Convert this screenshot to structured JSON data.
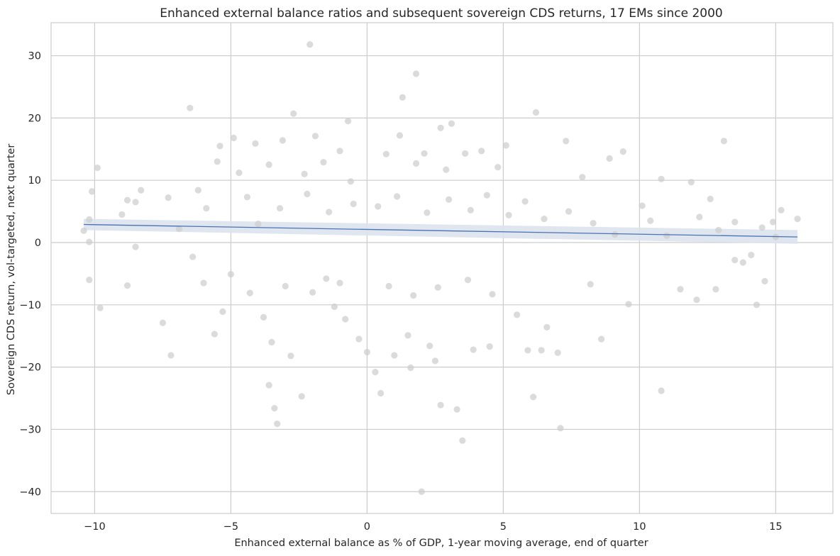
{
  "chart_data": {
    "type": "scatter",
    "title": "Enhanced external balance ratios and subsequent sovereign CDS returns, 17 EMs since 2000",
    "xlabel": "Enhanced external balance as % of GDP, 1-year moving average, end of quarter",
    "ylabel": "Sovereign CDS return, vol-targeted, next quarter",
    "xlim": [
      -11.6,
      17.1
    ],
    "ylim": [
      -43.5,
      35.3
    ],
    "xticks": [
      -10,
      -5,
      0,
      5,
      10,
      15
    ],
    "yticks": [
      -40,
      -30,
      -20,
      -10,
      0,
      10,
      20,
      30
    ],
    "xtick_labels": [
      "−10",
      "−5",
      "0",
      "5",
      "10",
      "15"
    ],
    "ytick_labels": [
      "−40",
      "−30",
      "−20",
      "−10",
      "0",
      "10",
      "20",
      "30"
    ],
    "grid": true,
    "colors": {
      "points": "#cccccc",
      "regression": "#4c72b0",
      "band": "#dbe3ee",
      "grid": "#cccccc",
      "axes_frame": "#cccccc"
    },
    "regression": {
      "x": [
        -10.4,
        15.8
      ],
      "y": [
        2.9,
        0.9
      ],
      "ci_halfwidth": [
        0.9,
        1.1
      ]
    },
    "points": [
      [
        -2.1,
        31.8
      ],
      [
        1.8,
        27.1
      ],
      [
        -6.5,
        21.6
      ],
      [
        6.2,
        20.9
      ],
      [
        -2.7,
        20.7
      ],
      [
        1.3,
        23.3
      ],
      [
        -0.7,
        19.5
      ],
      [
        2.7,
        18.4
      ],
      [
        -9.9,
        12.0
      ],
      [
        -10.1,
        8.2
      ],
      [
        -9.8,
        -10.5
      ],
      [
        -10.2,
        -6.0
      ],
      [
        -10.4,
        1.9
      ],
      [
        -10.2,
        3.7
      ],
      [
        -10.2,
        0.1
      ],
      [
        -9.0,
        4.5
      ],
      [
        -8.8,
        6.8
      ],
      [
        -8.5,
        6.5
      ],
      [
        -8.3,
        8.4
      ],
      [
        -8.5,
        -0.7
      ],
      [
        -8.8,
        -6.9
      ],
      [
        -7.5,
        -12.9
      ],
      [
        -7.2,
        -18.1
      ],
      [
        -7.3,
        7.2
      ],
      [
        -6.9,
        2.2
      ],
      [
        -6.4,
        -2.3
      ],
      [
        -6.2,
        8.4
      ],
      [
        -6.0,
        -6.5
      ],
      [
        -5.9,
        5.5
      ],
      [
        -5.5,
        13.0
      ],
      [
        -5.4,
        15.5
      ],
      [
        -5.6,
        -14.7
      ],
      [
        -5.3,
        -11.1
      ],
      [
        -5.0,
        -5.1
      ],
      [
        -4.9,
        16.8
      ],
      [
        -4.7,
        11.2
      ],
      [
        -4.4,
        7.3
      ],
      [
        -4.3,
        -8.1
      ],
      [
        -4.1,
        15.9
      ],
      [
        -3.8,
        -12.0
      ],
      [
        -3.6,
        12.5
      ],
      [
        -3.5,
        -16.0
      ],
      [
        -3.6,
        -22.9
      ],
      [
        -3.4,
        -26.6
      ],
      [
        -3.3,
        -29.1
      ],
      [
        -3.1,
        16.4
      ],
      [
        -2.8,
        -18.2
      ],
      [
        -2.4,
        -24.7
      ],
      [
        -2.3,
        11.0
      ],
      [
        -1.9,
        17.1
      ],
      [
        -1.6,
        12.9
      ],
      [
        -1.5,
        -5.8
      ],
      [
        -1.2,
        -10.3
      ],
      [
        -1.0,
        14.7
      ],
      [
        -0.8,
        -12.3
      ],
      [
        -0.6,
        9.8
      ],
      [
        -0.3,
        -15.5
      ],
      [
        0.0,
        -17.6
      ],
      [
        0.3,
        -20.8
      ],
      [
        0.5,
        -24.2
      ],
      [
        0.7,
        14.2
      ],
      [
        1.0,
        -18.1
      ],
      [
        1.2,
        17.2
      ],
      [
        1.5,
        -14.9
      ],
      [
        1.6,
        -20.1
      ],
      [
        1.8,
        12.7
      ],
      [
        2.0,
        -40.0
      ],
      [
        2.1,
        14.3
      ],
      [
        2.3,
        -16.6
      ],
      [
        2.5,
        -19.0
      ],
      [
        2.7,
        -26.1
      ],
      [
        2.9,
        11.7
      ],
      [
        3.1,
        19.1
      ],
      [
        3.3,
        -26.8
      ],
      [
        3.5,
        -31.8
      ],
      [
        3.6,
        14.3
      ],
      [
        3.9,
        -17.2
      ],
      [
        4.2,
        14.7
      ],
      [
        4.5,
        -16.7
      ],
      [
        4.8,
        12.1
      ],
      [
        5.1,
        15.6
      ],
      [
        5.5,
        -11.6
      ],
      [
        5.9,
        -17.3
      ],
      [
        6.1,
        -24.8
      ],
      [
        6.4,
        -17.3
      ],
      [
        6.6,
        -13.6
      ],
      [
        7.0,
        -17.7
      ],
      [
        7.1,
        -29.8
      ],
      [
        7.3,
        16.3
      ],
      [
        7.9,
        10.5
      ],
      [
        8.2,
        -6.7
      ],
      [
        8.6,
        -15.5
      ],
      [
        8.9,
        13.5
      ],
      [
        9.4,
        14.6
      ],
      [
        9.6,
        -9.9
      ],
      [
        10.1,
        5.9
      ],
      [
        10.8,
        10.2
      ],
      [
        10.8,
        -23.8
      ],
      [
        11.5,
        -7.5
      ],
      [
        12.1,
        -9.2
      ],
      [
        12.2,
        4.1
      ],
      [
        12.6,
        7.0
      ],
      [
        12.8,
        -7.5
      ],
      [
        13.1,
        16.3
      ],
      [
        13.5,
        -2.8
      ],
      [
        13.8,
        -3.2
      ],
      [
        14.1,
        -2.0
      ],
      [
        14.3,
        -10.0
      ],
      [
        14.6,
        -6.2
      ],
      [
        14.9,
        3.3
      ],
      [
        15.2,
        5.2
      ],
      [
        15.8,
        3.8
      ],
      [
        15.0,
        0.9
      ],
      [
        13.5,
        3.3
      ],
      [
        11.9,
        9.7
      ],
      [
        10.4,
        3.5
      ],
      [
        9.1,
        1.3
      ],
      [
        11.0,
        1.1
      ],
      [
        12.9,
        2.0
      ],
      [
        14.5,
        2.4
      ],
      [
        -3.0,
        -7.0
      ],
      [
        -2.0,
        -8.0
      ],
      [
        -1.0,
        -6.5
      ],
      [
        0.8,
        -7.0
      ],
      [
        1.7,
        -8.5
      ],
      [
        2.6,
        -7.2
      ],
      [
        3.7,
        -6.0
      ],
      [
        4.6,
        -8.3
      ],
      [
        -4.0,
        3.0
      ],
      [
        -3.2,
        5.5
      ],
      [
        -2.2,
        7.8
      ],
      [
        -1.4,
        4.9
      ],
      [
        -0.5,
        6.2
      ],
      [
        0.4,
        5.8
      ],
      [
        1.1,
        7.4
      ],
      [
        2.2,
        4.8
      ],
      [
        3.0,
        6.9
      ],
      [
        3.8,
        5.2
      ],
      [
        4.4,
        7.6
      ],
      [
        5.2,
        4.4
      ],
      [
        5.8,
        6.6
      ],
      [
        6.5,
        3.8
      ],
      [
        7.4,
        5.0
      ],
      [
        8.3,
        3.1
      ]
    ]
  }
}
